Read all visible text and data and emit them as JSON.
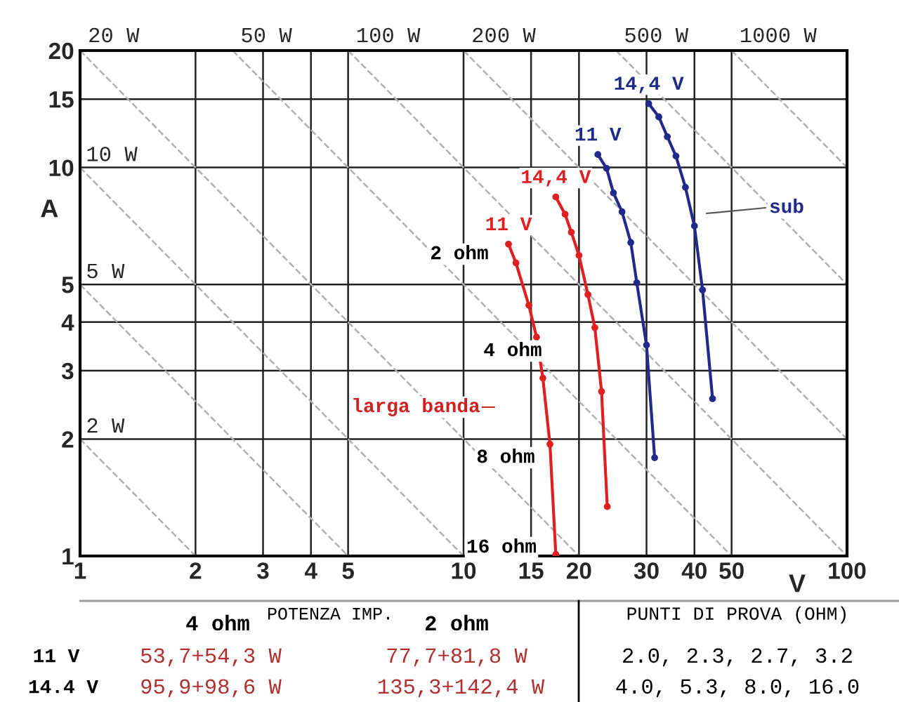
{
  "chart_data": {
    "type": "line",
    "log": "xy",
    "grid": true,
    "xlabel": "V",
    "ylabel": "A",
    "xlim": [
      1,
      100
    ],
    "ylim": [
      1,
      20
    ],
    "xticks": [
      1,
      2,
      3,
      4,
      5,
      10,
      15,
      20,
      30,
      40,
      50,
      100
    ],
    "yticks": [
      1,
      2,
      3,
      4,
      5,
      10,
      15,
      20
    ],
    "series": [
      {
        "color": "#b0b0b0",
        "line_style": "dashed",
        "marker": "none",
        "x": [
          1,
          2
        ],
        "values": [
          2,
          1
        ]
      },
      {
        "color": "#b0b0b0",
        "line_style": "dashed",
        "marker": "none",
        "x": [
          1,
          5
        ],
        "values": [
          5,
          1
        ]
      },
      {
        "color": "#b0b0b0",
        "line_style": "dashed",
        "marker": "none",
        "x": [
          1,
          10
        ],
        "values": [
          10,
          1
        ]
      },
      {
        "color": "#b0b0b0",
        "line_style": "dashed",
        "marker": "none",
        "x": [
          1,
          20
        ],
        "values": [
          20,
          1
        ]
      },
      {
        "color": "#b0b0b0",
        "line_style": "dashed",
        "marker": "none",
        "x": [
          2.5,
          50
        ],
        "values": [
          20,
          1
        ]
      },
      {
        "color": "#b0b0b0",
        "line_style": "dashed",
        "marker": "none",
        "x": [
          5,
          100
        ],
        "values": [
          20,
          1
        ]
      },
      {
        "color": "#b0b0b0",
        "line_style": "dashed",
        "marker": "none",
        "x": [
          10,
          100
        ],
        "values": [
          20,
          2
        ]
      },
      {
        "color": "#b0b0b0",
        "line_style": "dashed",
        "marker": "none",
        "x": [
          25,
          100
        ],
        "values": [
          20,
          5
        ]
      },
      {
        "color": "#b0b0b0",
        "line_style": "dashed",
        "marker": "none",
        "x": [
          50,
          100
        ],
        "values": [
          20,
          10
        ]
      },
      {
        "name": "11 V",
        "color": "#e02020",
        "line_style": "solid",
        "marker": "circle",
        "x": [
          13.1,
          13.7,
          14.8,
          15.5,
          16.1,
          16.8,
          17.4
        ],
        "values": [
          6.35,
          5.68,
          4.42,
          3.66,
          2.87,
          1.94,
          1.01
        ]
      },
      {
        "name": "14,4 V",
        "color": "#e02020",
        "line_style": "solid",
        "marker": "circle",
        "x": [
          17.4,
          18.4,
          19.1,
          20.0,
          21.1,
          22.0,
          22.9,
          23.7
        ],
        "values": [
          8.4,
          7.58,
          6.81,
          5.94,
          4.71,
          3.87,
          2.65,
          1.34
        ]
      },
      {
        "name": "11 V",
        "color": "#202a8a",
        "line_style": "solid",
        "marker": "circle",
        "x": [
          22.4,
          23.6,
          24.6,
          25.9,
          27.3,
          28.3,
          30.0,
          31.5
        ],
        "values": [
          10.8,
          9.95,
          8.6,
          7.69,
          6.41,
          5.05,
          3.49,
          1.79
        ]
      },
      {
        "name": "14,4 V",
        "color": "#202a8a",
        "line_style": "solid",
        "marker": "circle",
        "x": [
          30.4,
          32.3,
          34.0,
          35.8,
          37.9,
          40.0,
          42.0,
          44.6
        ],
        "values": [
          14.6,
          13.5,
          12.0,
          10.7,
          8.89,
          7.07,
          4.84,
          2.54
        ]
      }
    ],
    "annotations": [
      {
        "text": "20 W",
        "x": 1,
        "y": 20
      },
      {
        "text": "50 W",
        "x": 2.5,
        "y": 20
      },
      {
        "text": "100 W",
        "x": 5,
        "y": 20
      },
      {
        "text": "200 W",
        "x": 10,
        "y": 20
      },
      {
        "text": "500 W",
        "x": 25,
        "y": 20
      },
      {
        "text": "1000 W",
        "x": 50,
        "y": 20
      },
      {
        "text": "10 W",
        "x": 1,
        "y": 10
      },
      {
        "text": "5 W",
        "x": 1,
        "y": 5
      },
      {
        "text": "2 W",
        "x": 1,
        "y": 2
      },
      "2 ohm",
      "4 ohm",
      "8 ohm",
      "16 ohm",
      "larga banda",
      "sub",
      "POTENZA IMP.",
      "4 ohm",
      "2 ohm",
      "PUNTI DI PROVA (OHM)",
      "11 V",
      "53,7+54,3 W",
      "77,7+81,8 W",
      "2.0, 2.3, 2.7, 3.2",
      "14.4 V",
      "95,9+98,6 W",
      "135,3+142,4 W",
      "4.0, 5.3, 8.0, 16.0"
    ]
  }
}
